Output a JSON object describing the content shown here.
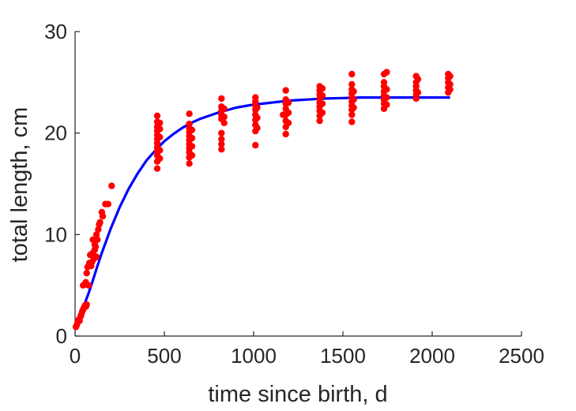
{
  "chart_data": {
    "type": "scatter",
    "title": "",
    "xlabel": "time since birth, d",
    "ylabel": "total length, cm",
    "xlim": [
      0,
      2500
    ],
    "ylim": [
      0,
      30
    ],
    "xticks": [
      "0",
      "500",
      "1000",
      "1500",
      "2000",
      "2500"
    ],
    "yticks": [
      "0",
      "10",
      "20",
      "30"
    ],
    "grid": false,
    "legend": "none",
    "colors": {
      "points": "#ff0000",
      "fit": "#0000ff",
      "axis": "#262626"
    },
    "series": [
      {
        "type": "scatter",
        "points": [
          [
            5,
            0.9
          ],
          [
            10,
            1.1
          ],
          [
            15,
            1.4
          ],
          [
            20,
            1.6
          ],
          [
            25,
            1.5
          ],
          [
            30,
            1.9
          ],
          [
            35,
            2.1
          ],
          [
            40,
            2.4
          ],
          [
            45,
            2.6
          ],
          [
            50,
            2.8
          ],
          [
            55,
            3.0
          ],
          [
            60,
            2.9
          ],
          [
            65,
            3.1
          ],
          [
            45,
            5.0
          ],
          [
            55,
            5.1
          ],
          [
            60,
            5.3
          ],
          [
            65,
            6.2
          ],
          [
            70,
            6.8
          ],
          [
            75,
            5.0
          ],
          [
            80,
            7.2
          ],
          [
            85,
            8.0
          ],
          [
            90,
            6.9
          ],
          [
            95,
            7.3
          ],
          [
            100,
            8.2
          ],
          [
            105,
            7.6
          ],
          [
            110,
            9.0
          ],
          [
            115,
            8.8
          ],
          [
            120,
            10.0
          ],
          [
            125,
            9.5
          ],
          [
            130,
            10.5
          ],
          [
            135,
            11.0
          ],
          [
            120,
            7.8
          ],
          [
            110,
            8.5
          ],
          [
            100,
            9.5
          ],
          [
            140,
            11.2
          ],
          [
            150,
            12.2
          ],
          [
            155,
            11.8
          ],
          [
            170,
            13.0
          ],
          [
            185,
            13.0
          ],
          [
            205,
            14.8
          ],
          [
            460,
            16.5
          ],
          [
            460,
            17.2
          ],
          [
            460,
            17.8
          ],
          [
            460,
            18.2
          ],
          [
            460,
            18.6
          ],
          [
            460,
            19.0
          ],
          [
            460,
            19.4
          ],
          [
            460,
            19.8
          ],
          [
            460,
            20.2
          ],
          [
            460,
            20.6
          ],
          [
            460,
            21.1
          ],
          [
            460,
            21.7
          ],
          [
            475,
            17.5
          ],
          [
            475,
            18.3
          ],
          [
            475,
            19.6
          ],
          [
            475,
            20.4
          ],
          [
            475,
            21.0
          ],
          [
            640,
            17.0
          ],
          [
            640,
            17.6
          ],
          [
            640,
            18.1
          ],
          [
            640,
            18.5
          ],
          [
            640,
            18.9
          ],
          [
            640,
            19.3
          ],
          [
            640,
            19.7
          ],
          [
            640,
            20.1
          ],
          [
            640,
            20.5
          ],
          [
            640,
            20.9
          ],
          [
            640,
            21.9
          ],
          [
            655,
            17.8
          ],
          [
            655,
            18.7
          ],
          [
            655,
            19.5
          ],
          [
            655,
            20.3
          ],
          [
            820,
            18.4
          ],
          [
            820,
            18.9
          ],
          [
            820,
            19.4
          ],
          [
            820,
            20.0
          ],
          [
            820,
            21.4
          ],
          [
            820,
            21.8
          ],
          [
            820,
            22.2
          ],
          [
            820,
            22.6
          ],
          [
            820,
            23.4
          ],
          [
            835,
            21.0
          ],
          [
            835,
            21.6
          ],
          [
            835,
            22.4
          ],
          [
            1010,
            18.8
          ],
          [
            1010,
            20.2
          ],
          [
            1010,
            20.8
          ],
          [
            1010,
            21.3
          ],
          [
            1010,
            21.8
          ],
          [
            1010,
            22.3
          ],
          [
            1010,
            22.7
          ],
          [
            1010,
            23.1
          ],
          [
            1010,
            23.5
          ],
          [
            1020,
            20.5
          ],
          [
            1020,
            21.5
          ],
          [
            1020,
            22.5
          ],
          [
            1180,
            19.9
          ],
          [
            1180,
            20.6
          ],
          [
            1180,
            21.2
          ],
          [
            1180,
            21.8
          ],
          [
            1180,
            22.4
          ],
          [
            1180,
            22.9
          ],
          [
            1180,
            23.3
          ],
          [
            1180,
            24.2
          ],
          [
            1195,
            21.0
          ],
          [
            1195,
            22.0
          ],
          [
            1195,
            23.0
          ],
          [
            1165,
            21.8
          ],
          [
            1370,
            21.2
          ],
          [
            1370,
            21.7
          ],
          [
            1370,
            22.2
          ],
          [
            1370,
            22.6
          ],
          [
            1370,
            23.0
          ],
          [
            1370,
            23.4
          ],
          [
            1370,
            23.8
          ],
          [
            1370,
            24.2
          ],
          [
            1370,
            24.6
          ],
          [
            1385,
            22.0
          ],
          [
            1385,
            22.9
          ],
          [
            1385,
            23.7
          ],
          [
            1385,
            24.4
          ],
          [
            1550,
            21.1
          ],
          [
            1550,
            21.8
          ],
          [
            1550,
            22.3
          ],
          [
            1550,
            22.7
          ],
          [
            1550,
            23.1
          ],
          [
            1550,
            23.5
          ],
          [
            1550,
            23.9
          ],
          [
            1550,
            24.3
          ],
          [
            1550,
            24.8
          ],
          [
            1550,
            25.8
          ],
          [
            1560,
            22.5
          ],
          [
            1560,
            23.3
          ],
          [
            1560,
            24.1
          ],
          [
            1730,
            22.4
          ],
          [
            1730,
            22.9
          ],
          [
            1730,
            23.3
          ],
          [
            1730,
            23.7
          ],
          [
            1730,
            24.1
          ],
          [
            1730,
            24.6
          ],
          [
            1730,
            25.0
          ],
          [
            1730,
            25.8
          ],
          [
            1745,
            22.8
          ],
          [
            1745,
            23.5
          ],
          [
            1745,
            24.3
          ],
          [
            1745,
            26.0
          ],
          [
            1910,
            23.4
          ],
          [
            1910,
            23.8
          ],
          [
            1910,
            24.2
          ],
          [
            1910,
            24.6
          ],
          [
            1910,
            25.0
          ],
          [
            1910,
            25.6
          ],
          [
            1920,
            24.0
          ],
          [
            1920,
            25.3
          ],
          [
            2090,
            24.0
          ],
          [
            2090,
            24.5
          ],
          [
            2090,
            25.0
          ],
          [
            2090,
            25.4
          ],
          [
            2090,
            25.8
          ],
          [
            2100,
            24.3
          ],
          [
            2100,
            24.8
          ],
          [
            2100,
            25.6
          ]
        ]
      },
      {
        "type": "line",
        "x": [
          0,
          25,
          50,
          75,
          100,
          125,
          150,
          175,
          200,
          250,
          300,
          350,
          400,
          450,
          500,
          550,
          600,
          650,
          700,
          800,
          900,
          1000,
          1100,
          1200,
          1300,
          1400,
          1500,
          1600,
          1700,
          1800,
          1900,
          2000,
          2100
        ],
        "y": [
          1.0,
          2.0,
          3.0,
          4.2,
          5.5,
          6.9,
          8.2,
          9.4,
          10.6,
          12.7,
          14.5,
          16.0,
          17.3,
          18.3,
          19.2,
          19.9,
          20.5,
          21.0,
          21.4,
          22.0,
          22.5,
          22.8,
          23.0,
          23.2,
          23.3,
          23.4,
          23.45,
          23.5,
          23.5,
          23.5,
          23.5,
          23.5,
          23.5
        ]
      }
    ]
  }
}
